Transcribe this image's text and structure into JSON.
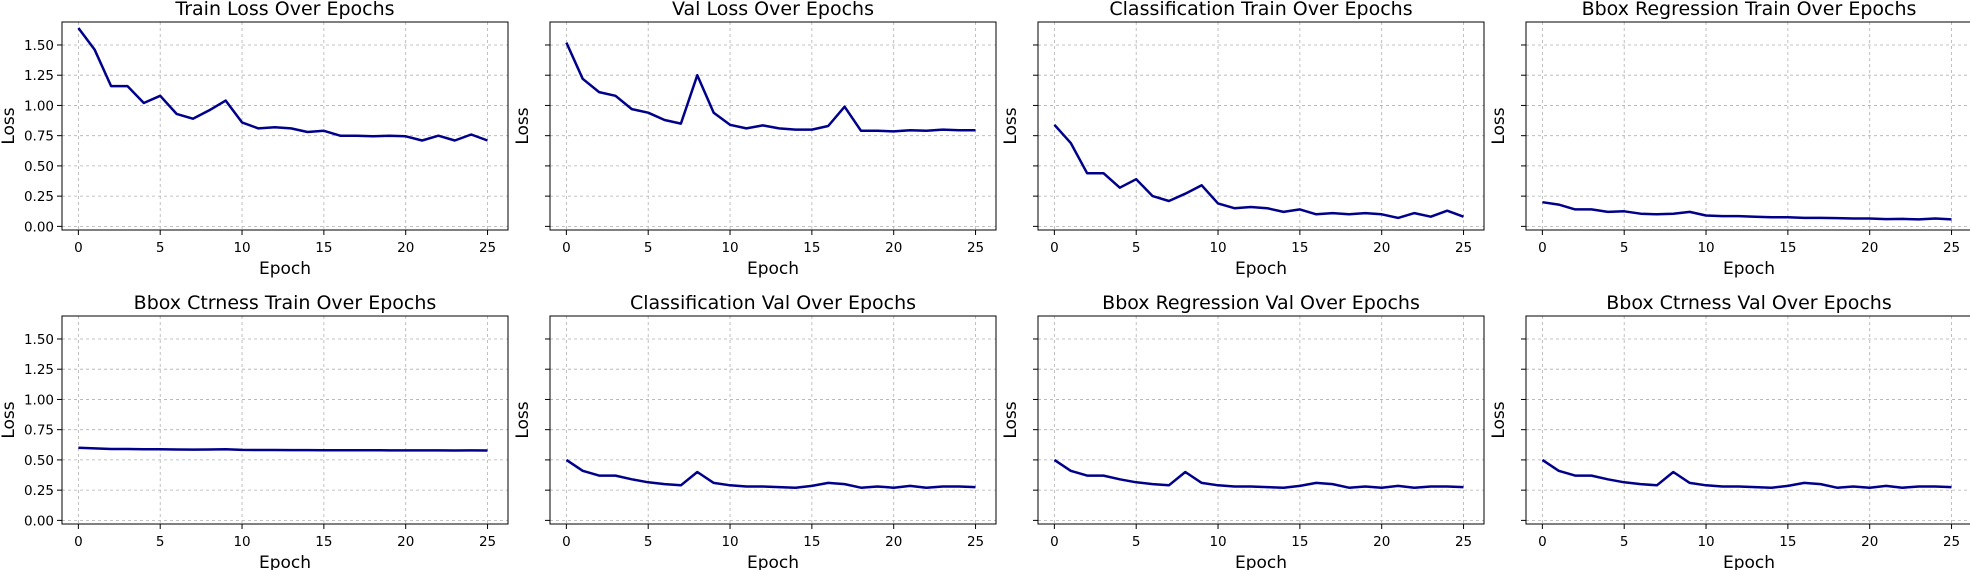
{
  "style": {
    "line_color": "#00008b",
    "grid": "on, dashed",
    "layout": "2 rows x 4 columns, shared y axis"
  },
  "chart_data": [
    {
      "type": "line",
      "title": "Train Loss Over Epochs",
      "xlabel": "Epoch",
      "ylabel": "Loss",
      "xlim": [
        -1,
        26.25
      ],
      "ylim": [
        -0.03,
        1.69
      ],
      "xticks": [
        "0",
        "5",
        "10",
        "15",
        "20",
        "25"
      ],
      "yticks": [
        "0.00",
        "0.25",
        "0.50",
        "0.75",
        "1.00",
        "1.25",
        "1.50"
      ],
      "series": [
        {
          "x": [
            0,
            1,
            2,
            3,
            4,
            5,
            6,
            7,
            8,
            9,
            10,
            11,
            12,
            13,
            14,
            15,
            16,
            17,
            18,
            19,
            20,
            21,
            22,
            23,
            24,
            25
          ],
          "y": [
            1.64,
            1.46,
            1.16,
            1.16,
            1.02,
            1.08,
            0.93,
            0.89,
            0.96,
            1.04,
            0.86,
            0.81,
            0.82,
            0.81,
            0.78,
            0.79,
            0.75,
            0.75,
            0.745,
            0.75,
            0.745,
            0.71,
            0.75,
            0.71,
            0.76,
            0.71
          ]
        }
      ]
    },
    {
      "type": "line",
      "title": "Val Loss Over Epochs",
      "xlabel": "Epoch",
      "ylabel": "Loss",
      "xlim": [
        -1,
        26.25
      ],
      "ylim": [
        -0.03,
        1.69
      ],
      "xticks": [
        "0",
        "5",
        "10",
        "15",
        "20",
        "25"
      ],
      "yticks": [],
      "series": [
        {
          "x": [
            0,
            1,
            2,
            3,
            4,
            5,
            6,
            7,
            8,
            9,
            10,
            11,
            12,
            13,
            14,
            15,
            16,
            17,
            18,
            19,
            20,
            21,
            22,
            23,
            24,
            25
          ],
          "y": [
            1.52,
            1.22,
            1.11,
            1.08,
            0.97,
            0.94,
            0.88,
            0.85,
            1.25,
            0.94,
            0.84,
            0.81,
            0.835,
            0.81,
            0.8,
            0.8,
            0.83,
            0.99,
            0.79,
            0.79,
            0.785,
            0.795,
            0.79,
            0.8,
            0.795,
            0.795
          ]
        }
      ]
    },
    {
      "type": "line",
      "title": "Classification Train Over Epochs",
      "xlabel": "Epoch",
      "ylabel": "Loss",
      "xlim": [
        -1,
        26.25
      ],
      "ylim": [
        -0.03,
        1.69
      ],
      "xticks": [
        "0",
        "5",
        "10",
        "15",
        "20",
        "25"
      ],
      "yticks": [],
      "series": [
        {
          "x": [
            0,
            1,
            2,
            3,
            4,
            5,
            6,
            7,
            8,
            9,
            10,
            11,
            12,
            13,
            14,
            15,
            16,
            17,
            18,
            19,
            20,
            21,
            22,
            23,
            24,
            25
          ],
          "y": [
            0.84,
            0.69,
            0.44,
            0.44,
            0.32,
            0.39,
            0.25,
            0.21,
            0.27,
            0.34,
            0.19,
            0.15,
            0.16,
            0.15,
            0.12,
            0.14,
            0.1,
            0.11,
            0.1,
            0.11,
            0.1,
            0.07,
            0.11,
            0.08,
            0.13,
            0.08
          ]
        }
      ]
    },
    {
      "type": "line",
      "title": "Bbox Regression Train Over Epochs",
      "xlabel": "Epoch",
      "ylabel": "Loss",
      "xlim": [
        -1,
        26.25
      ],
      "ylim": [
        -0.03,
        1.69
      ],
      "xticks": [
        "0",
        "5",
        "10",
        "15",
        "20",
        "25"
      ],
      "yticks": [],
      "series": [
        {
          "x": [
            0,
            1,
            2,
            3,
            4,
            5,
            6,
            7,
            8,
            9,
            10,
            11,
            12,
            13,
            14,
            15,
            16,
            17,
            18,
            19,
            20,
            21,
            22,
            23,
            24,
            25
          ],
          "y": [
            0.2,
            0.18,
            0.14,
            0.14,
            0.12,
            0.125,
            0.105,
            0.1,
            0.105,
            0.12,
            0.09,
            0.085,
            0.085,
            0.08,
            0.075,
            0.075,
            0.07,
            0.07,
            0.068,
            0.065,
            0.065,
            0.06,
            0.062,
            0.058,
            0.065,
            0.058
          ]
        }
      ]
    },
    {
      "type": "line",
      "title": "Bbox Ctrness Train Over Epochs",
      "xlabel": "Epoch",
      "ylabel": "Loss",
      "xlim": [
        -1,
        26.25
      ],
      "ylim": [
        -0.03,
        1.69
      ],
      "xticks": [
        "0",
        "5",
        "10",
        "15",
        "20",
        "25"
      ],
      "yticks": [
        "0.00",
        "0.25",
        "0.50",
        "0.75",
        "1.00",
        "1.25",
        "1.50"
      ],
      "series": [
        {
          "x": [
            0,
            1,
            2,
            3,
            4,
            5,
            6,
            7,
            8,
            9,
            10,
            11,
            12,
            13,
            14,
            15,
            16,
            17,
            18,
            19,
            20,
            21,
            22,
            23,
            24,
            25
          ],
          "y": [
            0.6,
            0.595,
            0.59,
            0.59,
            0.588,
            0.588,
            0.586,
            0.585,
            0.586,
            0.588,
            0.583,
            0.582,
            0.582,
            0.581,
            0.581,
            0.58,
            0.58,
            0.58,
            0.58,
            0.579,
            0.579,
            0.579,
            0.579,
            0.578,
            0.579,
            0.578
          ]
        }
      ]
    },
    {
      "type": "line",
      "title": "Classification Val Over Epochs",
      "xlabel": "Epoch",
      "ylabel": "Loss",
      "xlim": [
        -1,
        26.25
      ],
      "ylim": [
        -0.03,
        1.69
      ],
      "xticks": [
        "0",
        "5",
        "10",
        "15",
        "20",
        "25"
      ],
      "yticks": [],
      "series": [
        {
          "x": [
            0,
            1,
            2,
            3,
            4,
            5,
            6,
            7,
            8,
            9,
            10,
            11,
            12,
            13,
            14,
            15,
            16,
            17,
            18,
            19,
            20,
            21,
            22,
            23,
            24,
            25
          ],
          "y": [
            0.5,
            0.41,
            0.37,
            0.37,
            0.34,
            0.315,
            0.3,
            0.29,
            0.4,
            0.31,
            0.29,
            0.28,
            0.28,
            0.275,
            0.27,
            0.285,
            0.31,
            0.3,
            0.27,
            0.28,
            0.27,
            0.285,
            0.27,
            0.28,
            0.28,
            0.275
          ]
        }
      ]
    },
    {
      "type": "line",
      "title": "Bbox Regression Val Over Epochs",
      "xlabel": "Epoch",
      "ylabel": "Loss",
      "xlim": [
        -1,
        26.25
      ],
      "ylim": [
        -0.03,
        1.69
      ],
      "xticks": [
        "0",
        "5",
        "10",
        "15",
        "20",
        "25"
      ],
      "yticks": [],
      "series": [
        {
          "x": [
            0,
            1,
            2,
            3,
            4,
            5,
            6,
            7,
            8,
            9,
            10,
            11,
            12,
            13,
            14,
            15,
            16,
            17,
            18,
            19,
            20,
            21,
            22,
            23,
            24,
            25
          ],
          "y": [
            0.5,
            0.41,
            0.37,
            0.37,
            0.34,
            0.315,
            0.3,
            0.29,
            0.4,
            0.31,
            0.29,
            0.28,
            0.28,
            0.275,
            0.27,
            0.285,
            0.31,
            0.3,
            0.27,
            0.28,
            0.27,
            0.285,
            0.27,
            0.28,
            0.28,
            0.275
          ]
        }
      ]
    },
    {
      "type": "line",
      "title": "Bbox Ctrness Val Over Epochs",
      "xlabel": "Epoch",
      "ylabel": "Loss",
      "xlim": [
        -1,
        26.25
      ],
      "ylim": [
        -0.03,
        1.69
      ],
      "xticks": [
        "0",
        "5",
        "10",
        "15",
        "20",
        "25"
      ],
      "yticks": [],
      "series": [
        {
          "x": [
            0,
            1,
            2,
            3,
            4,
            5,
            6,
            7,
            8,
            9,
            10,
            11,
            12,
            13,
            14,
            15,
            16,
            17,
            18,
            19,
            20,
            21,
            22,
            23,
            24,
            25
          ],
          "y": [
            0.5,
            0.41,
            0.37,
            0.37,
            0.34,
            0.315,
            0.3,
            0.29,
            0.4,
            0.31,
            0.29,
            0.28,
            0.28,
            0.275,
            0.27,
            0.285,
            0.31,
            0.3,
            0.27,
            0.28,
            0.27,
            0.285,
            0.27,
            0.28,
            0.28,
            0.275
          ]
        }
      ]
    }
  ]
}
